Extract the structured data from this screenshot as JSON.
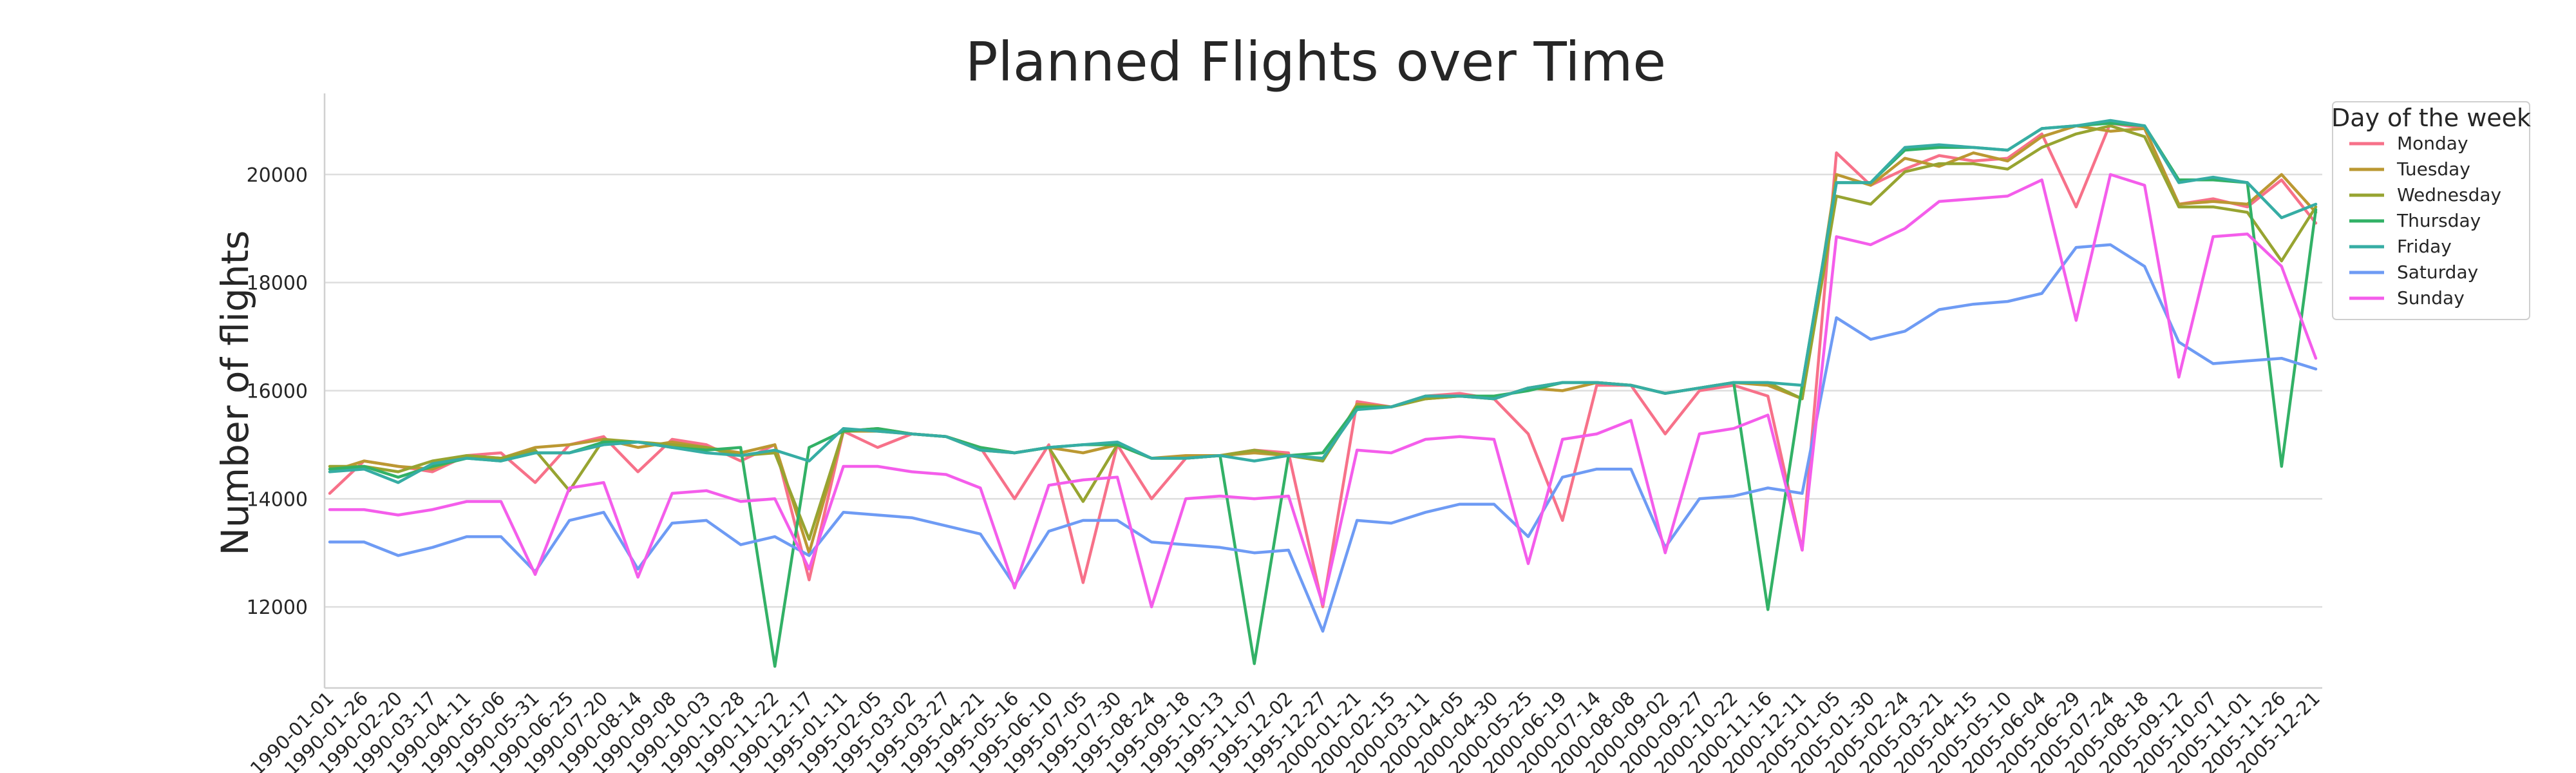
{
  "chart_data": {
    "type": "line",
    "title": "Planned Flights over Time",
    "xlabel": "",
    "ylabel": "Number of flights",
    "ylim": [
      10500,
      21500
    ],
    "yticks": [
      12000,
      14000,
      16000,
      18000,
      20000
    ],
    "grid": "horizontal",
    "legend_title": "Day of the week",
    "legend_placement": "upper-right-outside",
    "x": [
      "1990-01-01",
      "1990-01-26",
      "1990-02-20",
      "1990-03-17",
      "1990-04-11",
      "1990-05-06",
      "1990-05-31",
      "1990-06-25",
      "1990-07-20",
      "1990-08-14",
      "1990-09-08",
      "1990-10-03",
      "1990-10-28",
      "1990-11-22",
      "1990-12-17",
      "1995-01-11",
      "1995-02-05",
      "1995-03-02",
      "1995-03-27",
      "1995-04-21",
      "1995-05-16",
      "1995-06-10",
      "1995-07-05",
      "1995-07-30",
      "1995-08-24",
      "1995-09-18",
      "1995-10-13",
      "1995-11-07",
      "1995-12-02",
      "1995-12-27",
      "2000-01-21",
      "2000-02-15",
      "2000-03-11",
      "2000-04-05",
      "2000-04-30",
      "2000-05-25",
      "2000-06-19",
      "2000-07-14",
      "2000-08-08",
      "2000-09-02",
      "2000-09-27",
      "2000-10-22",
      "2000-11-16",
      "2000-12-11",
      "2005-01-05",
      "2005-01-30",
      "2005-02-24",
      "2005-03-21",
      "2005-04-15",
      "2005-05-10",
      "2005-06-04",
      "2005-06-29",
      "2005-07-24",
      "2005-08-18",
      "2005-09-12",
      "2005-10-07",
      "2005-11-01",
      "2005-11-26",
      "2005-12-21"
    ],
    "series": [
      {
        "name": "Monday",
        "color": "#f77189",
        "values": [
          14100,
          14700,
          14600,
          14500,
          14800,
          14850,
          14300,
          15000,
          15150,
          14500,
          15100,
          15000,
          14700,
          15000,
          12500,
          15250,
          14950,
          15200,
          15150,
          14950,
          14000,
          15000,
          12450,
          15000,
          14000,
          14750,
          14800,
          14900,
          14850,
          12000,
          15800,
          15700,
          15900,
          15950,
          15850,
          15200,
          13600,
          16100,
          16100,
          15200,
          16000,
          16100,
          15900,
          13050,
          20400,
          19800,
          20100,
          20350,
          20250,
          20300,
          20750,
          19400,
          20950,
          20850,
          19450,
          19550,
          19400,
          19900,
          19100
        ]
      },
      {
        "name": "Tuesday",
        "color": "#bb9832",
        "values": [
          14500,
          14700,
          14600,
          14550,
          14800,
          14750,
          14950,
          15000,
          15100,
          14950,
          15050,
          14950,
          14850,
          15000,
          13000,
          15250,
          15250,
          15200,
          15150,
          14900,
          14850,
          14950,
          14850,
          15000,
          14750,
          14800,
          14800,
          14850,
          14800,
          14700,
          15750,
          15700,
          15850,
          15900,
          15850,
          16050,
          16000,
          16150,
          16100,
          15950,
          16050,
          16150,
          16100,
          15850,
          20000,
          19800,
          20300,
          20150,
          20400,
          20250,
          20700,
          20900,
          20800,
          20850,
          19450,
          19500,
          19450,
          20000,
          19300
        ]
      },
      {
        "name": "Wednesday",
        "color": "#97a431",
        "values": [
          14600,
          14600,
          14500,
          14700,
          14800,
          14750,
          14900,
          14150,
          15100,
          15050,
          15000,
          14950,
          14800,
          14850,
          13250,
          15250,
          15300,
          15200,
          15150,
          14950,
          14850,
          14950,
          13950,
          15000,
          14750,
          14750,
          14800,
          14900,
          14800,
          14700,
          15700,
          15700,
          15850,
          15900,
          15850,
          16050,
          16150,
          16150,
          16100,
          15950,
          16050,
          16150,
          16150,
          15850,
          19600,
          19450,
          20050,
          20200,
          20200,
          20100,
          20500,
          20750,
          20900,
          20700,
          19400,
          19400,
          19300,
          18400,
          19400
        ]
      },
      {
        "name": "Thursday",
        "color": "#32b166",
        "values": [
          14550,
          14600,
          14400,
          14600,
          14750,
          14700,
          14850,
          14850,
          15050,
          15050,
          14950,
          14900,
          14950,
          10900,
          14950,
          15250,
          15300,
          15200,
          15150,
          14950,
          14850,
          14950,
          15000,
          15000,
          14750,
          14750,
          14800,
          10950,
          14800,
          14850,
          15700,
          15700,
          15900,
          15900,
          15900,
          16000,
          16150,
          16150,
          16100,
          15950,
          16050,
          16150,
          11950,
          16100,
          19850,
          19850,
          20450,
          20500,
          20500,
          20450,
          20850,
          20900,
          20950,
          20900,
          19900,
          19900,
          19850,
          14600,
          19350
        ]
      },
      {
        "name": "Friday",
        "color": "#36ada4",
        "values": [
          14500,
          14550,
          14300,
          14650,
          14750,
          14700,
          14850,
          14850,
          15000,
          15050,
          14950,
          14850,
          14800,
          14900,
          14700,
          15300,
          15250,
          15200,
          15150,
          14900,
          14850,
          14950,
          15000,
          15050,
          14750,
          14750,
          14800,
          14700,
          14800,
          14750,
          15650,
          15700,
          15900,
          15900,
          15850,
          16050,
          16150,
          16150,
          16100,
          15950,
          16050,
          16150,
          16150,
          16100,
          19850,
          19850,
          20500,
          20550,
          20500,
          20450,
          20850,
          20900,
          21000,
          20900,
          19850,
          19950,
          19850,
          19200,
          19450
        ]
      },
      {
        "name": "Saturday",
        "color": "#6e9bf4",
        "values": [
          13200,
          13200,
          12950,
          13100,
          13300,
          13300,
          12650,
          13600,
          13750,
          12700,
          13550,
          13600,
          13150,
          13300,
          12950,
          13750,
          13700,
          13650,
          13500,
          13350,
          12400,
          13400,
          13600,
          13600,
          13200,
          13150,
          13100,
          13000,
          13050,
          11550,
          13600,
          13550,
          13750,
          13900,
          13900,
          13300,
          14400,
          14550,
          14550,
          13100,
          14000,
          14050,
          14200,
          14100,
          17350,
          16950,
          17100,
          17500,
          17600,
          17650,
          17800,
          18650,
          18700,
          18300,
          16900,
          16500,
          16550,
          16600,
          16400
        ]
      },
      {
        "name": "Sunday",
        "color": "#f45deb",
        "values": [
          13800,
          13800,
          13700,
          13800,
          13950,
          13950,
          12600,
          14200,
          14300,
          12550,
          14100,
          14150,
          13950,
          14000,
          12700,
          14600,
          14600,
          14500,
          14450,
          14200,
          12350,
          14250,
          14350,
          14400,
          12000,
          14000,
          14050,
          14000,
          14050,
          12050,
          14900,
          14850,
          15100,
          15150,
          15100,
          12800,
          15100,
          15200,
          15450,
          13000,
          15200,
          15300,
          15550,
          13050,
          18850,
          18700,
          19000,
          19500,
          19550,
          19600,
          19900,
          17300,
          20000,
          19800,
          16250,
          18850,
          18900,
          18300,
          16600
        ]
      }
    ]
  }
}
